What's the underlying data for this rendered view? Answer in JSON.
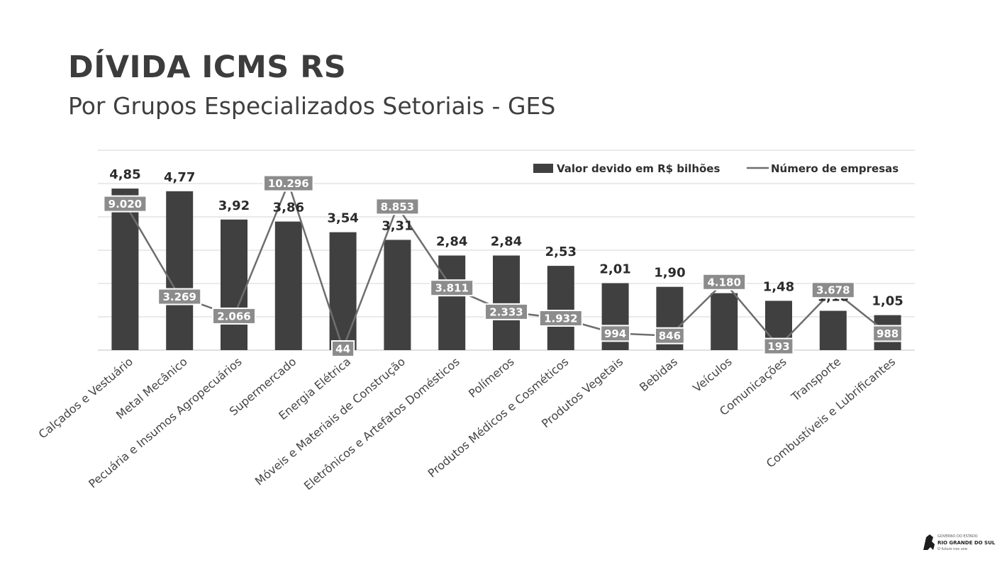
{
  "header": {
    "title": "DÍVIDA ICMS RS",
    "subtitle": "Por Grupos Especializados Setoriais - GES"
  },
  "colors": {
    "bar": "#404040",
    "line": "#6e6e6e",
    "count_box": "#8c8c8c"
  },
  "chart_data": {
    "type": "bar",
    "title": "DÍVIDA ICMS RS",
    "subtitle": "Por Grupos Especializados Setoriais - GES",
    "legend_position": "top-right",
    "grid": true,
    "ylim": [
      0,
      6
    ],
    "y2lim": [
      0,
      11000
    ],
    "categories": [
      "Calçados e Vestuário",
      "Metal Mecânico",
      "Pecuária e Insumos Agropecuários",
      "Supermercado",
      "Energia Elétrica",
      "Móveis e Materiais de Construção",
      "Eletrônicos e Artefatos Domésticos",
      "Polímeros",
      "Produtos Médicos e Cosméticos",
      "Produtos Vegetais",
      "Bebidas",
      "Veículos",
      "Comunicações",
      "Transporte",
      "Combustíveis e Lubrificantes"
    ],
    "series": [
      {
        "name": "Valor devido em R$ bilhões",
        "type": "bar",
        "values": [
          4.85,
          4.77,
          3.92,
          3.86,
          3.54,
          3.31,
          2.84,
          2.84,
          2.53,
          2.01,
          1.9,
          1.71,
          1.48,
          1.18,
          1.05
        ],
        "labels": [
          "4,85",
          "4,77",
          "3,92",
          "3,86",
          "3,54",
          "3,31",
          "2,84",
          "2,84",
          "2,53",
          "2,01",
          "1,90",
          "1,71",
          "1,48",
          "1,18",
          "1,05"
        ]
      },
      {
        "name": "Número de empresas",
        "type": "line",
        "values": [
          9020,
          3269,
          2066,
          10296,
          44,
          8853,
          3811,
          2333,
          1932,
          994,
          846,
          4180,
          193,
          3678,
          988
        ],
        "labels": [
          "9.020",
          "3.269",
          "2.066",
          "10.296",
          "44",
          "8.853",
          "3.811",
          "2.333",
          "1.932",
          "994",
          "846",
          "4.180",
          "193",
          "3.678",
          "988"
        ]
      }
    ]
  },
  "logo": {
    "line1": "GOVERNO DO ESTADO",
    "line2": "RIO GRANDE DO SUL",
    "line3": "O futuro nos une"
  }
}
